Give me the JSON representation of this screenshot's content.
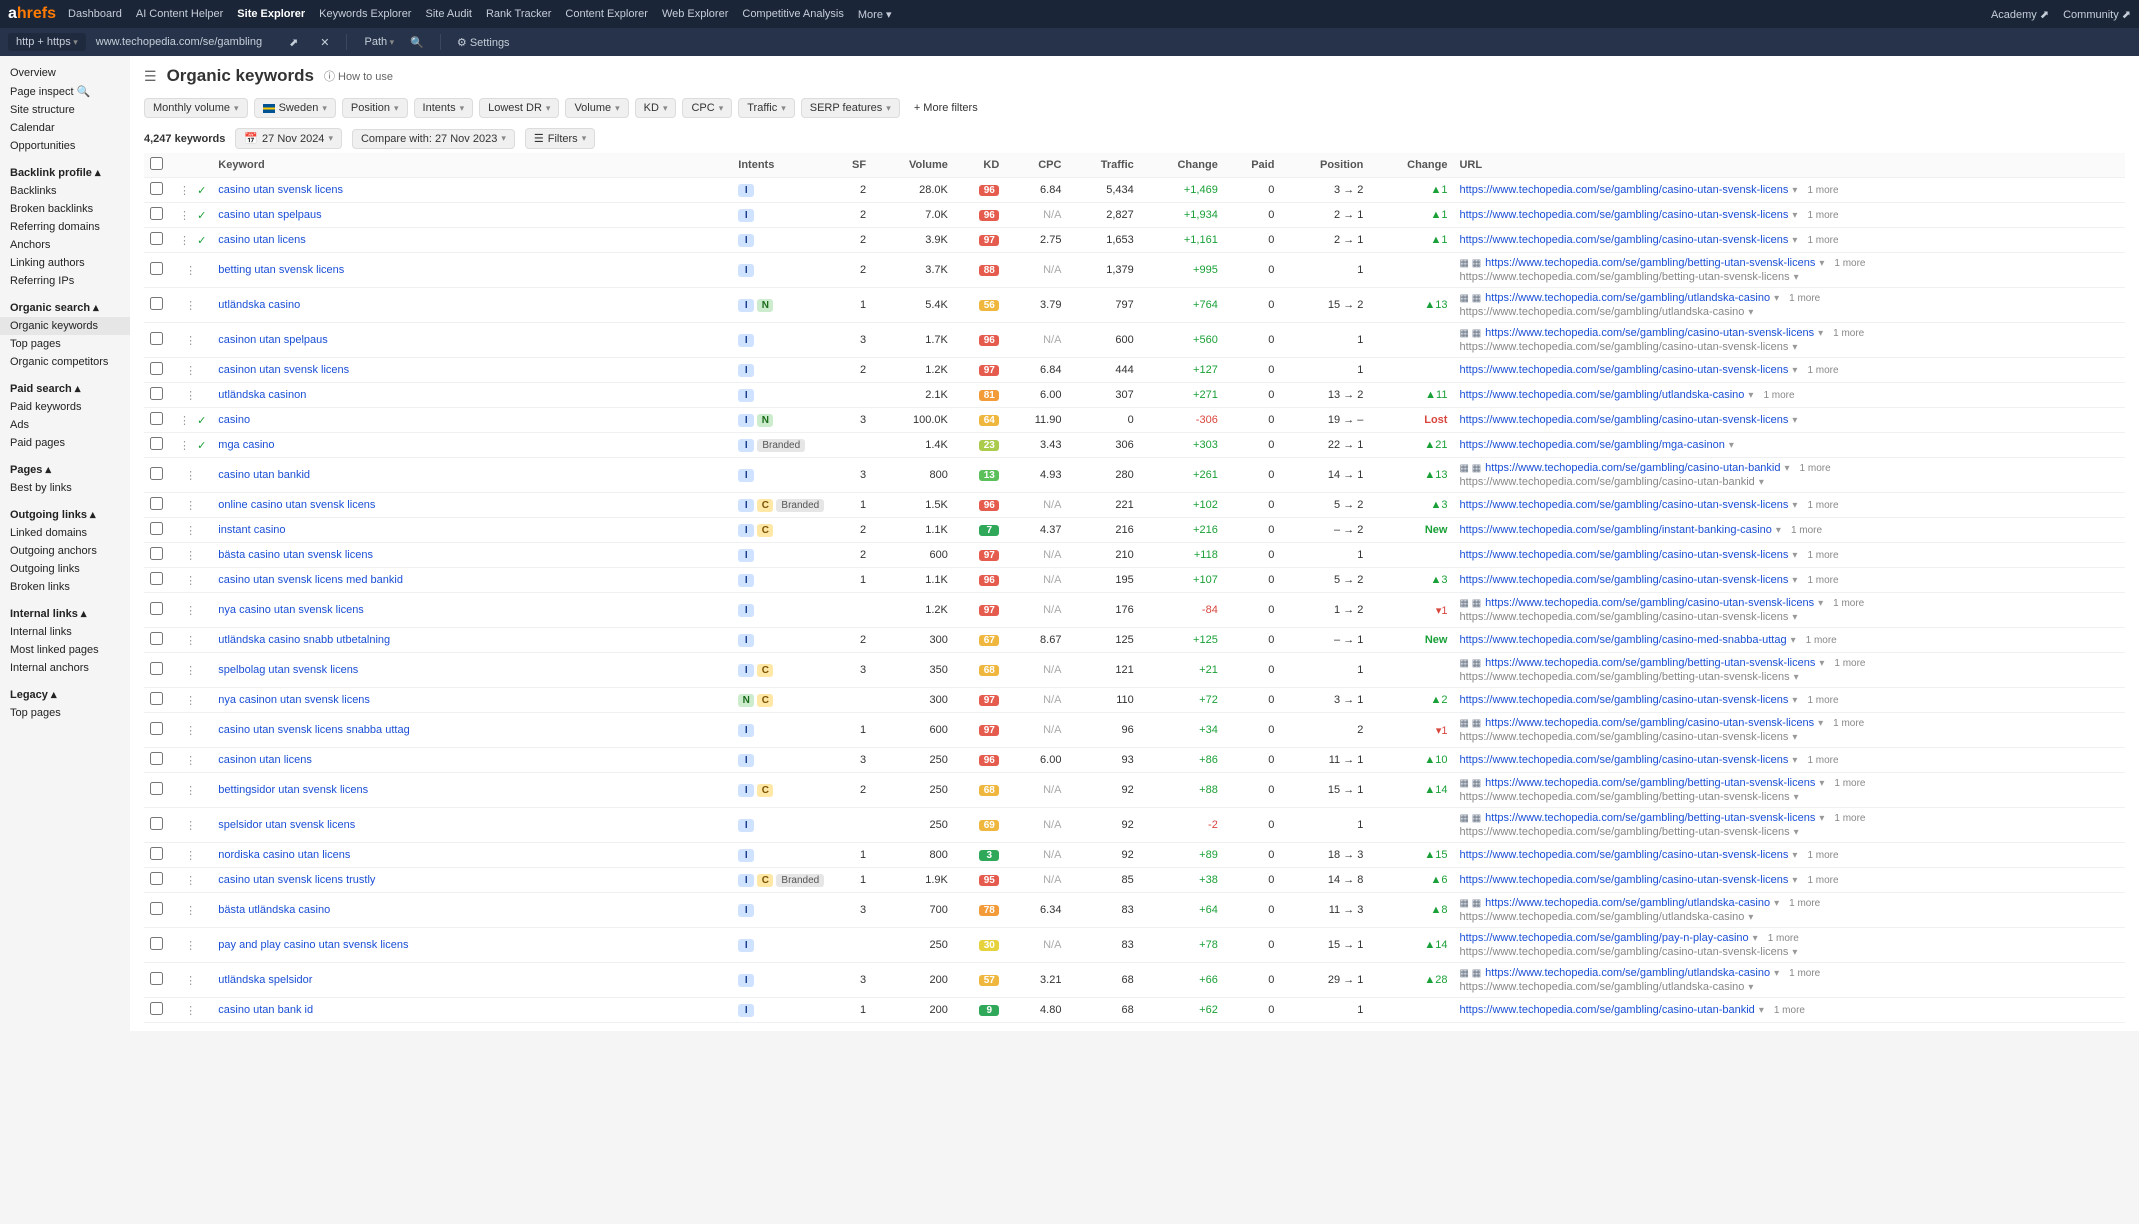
{
  "logo": {
    "a": "a",
    "hrefs": "hrefs"
  },
  "topnav": [
    "Dashboard",
    "AI Content Helper",
    "Site Explorer",
    "Keywords Explorer",
    "Site Audit",
    "Rank Tracker",
    "Content Explorer",
    "Web Explorer",
    "Competitive Analysis",
    "More"
  ],
  "topnav_active": 2,
  "topnav_right": [
    "Academy",
    "Community"
  ],
  "urlbar": {
    "proto": "http + https",
    "target": "www.techopedia.com/se/gambling",
    "mode": "Path",
    "settings": "Settings"
  },
  "sidebar": {
    "items": [
      {
        "t": "Overview"
      },
      {
        "t": "Page inspect",
        "icon": "search"
      },
      {
        "t": "Site structure"
      },
      {
        "t": "Calendar"
      },
      {
        "t": "Opportunities"
      }
    ],
    "groups": [
      {
        "title": "Backlink profile",
        "items": [
          "Backlinks",
          "Broken backlinks",
          "Referring domains",
          "Anchors",
          "Linking authors",
          "Referring IPs"
        ]
      },
      {
        "title": "Organic search",
        "items": [
          "Organic keywords",
          "Top pages",
          "Organic competitors"
        ],
        "active": 0
      },
      {
        "title": "Paid search",
        "items": [
          "Paid keywords",
          "Ads",
          "Paid pages"
        ]
      },
      {
        "title": "Pages",
        "items": [
          "Best by links"
        ]
      },
      {
        "title": "Outgoing links",
        "items": [
          "Linked domains",
          "Outgoing anchors",
          "Outgoing links",
          "Broken links"
        ]
      },
      {
        "title": "Internal links",
        "items": [
          "Internal links",
          "Most linked pages",
          "Internal anchors"
        ]
      },
      {
        "title": "Legacy",
        "items": [
          "Top pages"
        ]
      }
    ]
  },
  "page": {
    "title": "Organic keywords",
    "howto": "How to use"
  },
  "filters": {
    "chips": [
      "Monthly volume",
      "Sweden",
      "Position",
      "Intents",
      "Lowest DR",
      "Volume",
      "KD",
      "CPC",
      "Traffic",
      "SERP features"
    ],
    "more": "+ More filters"
  },
  "subrow": {
    "count": "4,247 keywords",
    "date": "27 Nov 2024",
    "compare": "Compare with: 27 Nov 2023",
    "filters": "Filters"
  },
  "columns": [
    "",
    "",
    "Keyword",
    "Intents",
    "SF",
    "Volume",
    "KD",
    "CPC",
    "Traffic",
    "Change",
    "Paid",
    "Position",
    "Change",
    "URL"
  ],
  "kd_colors": {
    "red": "#e55b4d",
    "orange": "#f29b38",
    "amber": "#efb73e",
    "yellow": "#e6d23c",
    "lime": "#aacb4b",
    "green": "#5bbf5b",
    "dgreen": "#2fa85a"
  },
  "rows": [
    {
      "chk": true,
      "kw": "casino utan svensk licens",
      "intents": [
        "I"
      ],
      "sf": "2",
      "vol": "28.0K",
      "kd": "96",
      "kdc": "red",
      "cpc": "6.84",
      "traffic": "5,434",
      "tchange": "+1,469",
      "tpos": true,
      "paid": "0",
      "pos": "3 → 2",
      "pchange": "▲1",
      "url": "https://www.techopedia.com/se/gambling/casino-utan-svensk-licens",
      "more": "1 more"
    },
    {
      "chk": true,
      "kw": "casino utan spelpaus",
      "intents": [
        "I"
      ],
      "sf": "2",
      "vol": "7.0K",
      "kd": "96",
      "kdc": "red",
      "cpc": "N/A",
      "traffic": "2,827",
      "tchange": "+1,934",
      "tpos": true,
      "paid": "0",
      "pos": "2 → 1",
      "pchange": "▲1",
      "url": "https://www.techopedia.com/se/gambling/casino-utan-svensk-licens",
      "more": "1 more"
    },
    {
      "chk": true,
      "kw": "casino utan licens",
      "intents": [
        "I"
      ],
      "sf": "2",
      "vol": "3.9K",
      "kd": "97",
      "kdc": "red",
      "cpc": "2.75",
      "traffic": "1,653",
      "tchange": "+1,161",
      "tpos": true,
      "paid": "0",
      "pos": "2 → 1",
      "pchange": "▲1",
      "url": "https://www.techopedia.com/se/gambling/casino-utan-svensk-licens",
      "more": "1 more"
    },
    {
      "kw": "betting utan svensk licens",
      "intents": [
        "I"
      ],
      "sf": "2",
      "vol": "3.7K",
      "kd": "88",
      "kdc": "red",
      "cpc": "N/A",
      "traffic": "1,379",
      "tchange": "+995",
      "tpos": true,
      "paid": "0",
      "pos": "1",
      "pchange": "",
      "icons": true,
      "url": "https://www.techopedia.com/se/gambling/betting-utan-svensk-licens",
      "more": "1 more",
      "url2": "https://www.techopedia.com/se/gambling/betting-utan-svensk-licens"
    },
    {
      "kw": "utländska casino",
      "intents": [
        "I",
        "N"
      ],
      "sf": "1",
      "vol": "5.4K",
      "kd": "56",
      "kdc": "amber",
      "cpc": "3.79",
      "traffic": "797",
      "tchange": "+764",
      "tpos": true,
      "paid": "0",
      "pos": "15 → 2",
      "pchange": "▲13",
      "icons": true,
      "url": "https://www.techopedia.com/se/gambling/utlandska-casino",
      "more": "1 more",
      "url2": "https://www.techopedia.com/se/gambling/utlandska-casino"
    },
    {
      "kw": "casinon utan spelpaus",
      "intents": [
        "I"
      ],
      "sf": "3",
      "vol": "1.7K",
      "kd": "96",
      "kdc": "red",
      "cpc": "N/A",
      "traffic": "600",
      "tchange": "+560",
      "tpos": true,
      "paid": "0",
      "pos": "1",
      "pchange": "",
      "icons": true,
      "url": "https://www.techopedia.com/se/gambling/casino-utan-svensk-licens",
      "more": "1 more",
      "url2": "https://www.techopedia.com/se/gambling/casino-utan-svensk-licens"
    },
    {
      "kw": "casinon utan svensk licens",
      "intents": [
        "I"
      ],
      "sf": "2",
      "vol": "1.2K",
      "kd": "97",
      "kdc": "red",
      "cpc": "6.84",
      "traffic": "444",
      "tchange": "+127",
      "tpos": true,
      "paid": "0",
      "pos": "1",
      "pchange": "",
      "url": "https://www.techopedia.com/se/gambling/casino-utan-svensk-licens",
      "more": "1 more"
    },
    {
      "kw": "utländska casinon",
      "intents": [
        "I"
      ],
      "sf": "",
      "vol": "2.1K",
      "kd": "81",
      "kdc": "orange",
      "cpc": "6.00",
      "traffic": "307",
      "tchange": "+271",
      "tpos": true,
      "paid": "0",
      "pos": "13 → 2",
      "pchange": "▲11",
      "url": "https://www.techopedia.com/se/gambling/utlandska-casino",
      "more": "1 more"
    },
    {
      "chk": true,
      "kw": "casino",
      "intents": [
        "I",
        "N"
      ],
      "sf": "3",
      "vol": "100.0K",
      "kd": "64",
      "kdc": "amber",
      "cpc": "11.90",
      "traffic": "0",
      "tchange": "-306",
      "tpos": false,
      "paid": "0",
      "pos": "19 → –",
      "pchange": "Lost",
      "url": "https://www.techopedia.com/se/gambling/casino-utan-svensk-licens"
    },
    {
      "chk": true,
      "kw": "mga casino",
      "intents": [
        "I",
        "Branded"
      ],
      "sf": "",
      "vol": "1.4K",
      "kd": "23",
      "kdc": "lime",
      "cpc": "3.43",
      "traffic": "306",
      "tchange": "+303",
      "tpos": true,
      "paid": "0",
      "pos": "22 → 1",
      "pchange": "▲21",
      "url": "https://www.techopedia.com/se/gambling/mga-casinon"
    },
    {
      "kw": "casino utan bankid",
      "intents": [
        "I"
      ],
      "sf": "3",
      "vol": "800",
      "kd": "13",
      "kdc": "green",
      "cpc": "4.93",
      "traffic": "280",
      "tchange": "+261",
      "tpos": true,
      "paid": "0",
      "pos": "14 → 1",
      "pchange": "▲13",
      "icons": true,
      "url": "https://www.techopedia.com/se/gambling/casino-utan-bankid",
      "more": "1 more",
      "url2": "https://www.techopedia.com/se/gambling/casino-utan-bankid"
    },
    {
      "kw": "online casino utan svensk licens",
      "intents": [
        "I",
        "C",
        "Branded"
      ],
      "sf": "1",
      "vol": "1.5K",
      "kd": "96",
      "kdc": "red",
      "cpc": "N/A",
      "traffic": "221",
      "tchange": "+102",
      "tpos": true,
      "paid": "0",
      "pos": "5 → 2",
      "pchange": "▲3",
      "url": "https://www.techopedia.com/se/gambling/casino-utan-svensk-licens",
      "more": "1 more"
    },
    {
      "kw": "instant casino",
      "intents": [
        "I",
        "C"
      ],
      "sf": "2",
      "vol": "1.1K",
      "kd": "7",
      "kdc": "dgreen",
      "cpc": "4.37",
      "traffic": "216",
      "tchange": "+216",
      "tpos": true,
      "paid": "0",
      "pos": "– → 2",
      "pchange": "New",
      "url": "https://www.techopedia.com/se/gambling/instant-banking-casino",
      "more": "1 more"
    },
    {
      "kw": "bästa casino utan svensk licens",
      "intents": [
        "I"
      ],
      "sf": "2",
      "vol": "600",
      "kd": "97",
      "kdc": "red",
      "cpc": "N/A",
      "traffic": "210",
      "tchange": "+118",
      "tpos": true,
      "paid": "0",
      "pos": "1",
      "pchange": "",
      "url": "https://www.techopedia.com/se/gambling/casino-utan-svensk-licens",
      "more": "1 more"
    },
    {
      "kw": "casino utan svensk licens med bankid",
      "intents": [
        "I"
      ],
      "sf": "1",
      "vol": "1.1K",
      "kd": "96",
      "kdc": "red",
      "cpc": "N/A",
      "traffic": "195",
      "tchange": "+107",
      "tpos": true,
      "paid": "0",
      "pos": "5 → 2",
      "pchange": "▲3",
      "url": "https://www.techopedia.com/se/gambling/casino-utan-svensk-licens",
      "more": "1 more"
    },
    {
      "kw": "nya casino utan svensk licens",
      "intents": [
        "I"
      ],
      "sf": "",
      "vol": "1.2K",
      "kd": "97",
      "kdc": "red",
      "cpc": "N/A",
      "traffic": "176",
      "tchange": "-84",
      "tpos": false,
      "paid": "0",
      "pos": "1 → 2",
      "pchange": "▾1",
      "icons": true,
      "url": "https://www.techopedia.com/se/gambling/casino-utan-svensk-licens",
      "more": "1 more",
      "url2": "https://www.techopedia.com/se/gambling/casino-utan-svensk-licens"
    },
    {
      "kw": "utländska casino snabb utbetalning",
      "intents": [
        "I"
      ],
      "sf": "2",
      "vol": "300",
      "kd": "67",
      "kdc": "amber",
      "cpc": "8.67",
      "traffic": "125",
      "tchange": "+125",
      "tpos": true,
      "paid": "0",
      "pos": "– → 1",
      "pchange": "New",
      "url": "https://www.techopedia.com/se/gambling/casino-med-snabba-uttag",
      "more": "1 more"
    },
    {
      "kw": "spelbolag utan svensk licens",
      "intents": [
        "I",
        "C"
      ],
      "sf": "3",
      "vol": "350",
      "kd": "68",
      "kdc": "amber",
      "cpc": "N/A",
      "traffic": "121",
      "tchange": "+21",
      "tpos": true,
      "paid": "0",
      "pos": "1",
      "pchange": "",
      "icons": true,
      "url": "https://www.techopedia.com/se/gambling/betting-utan-svensk-licens",
      "more": "1 more",
      "url2": "https://www.techopedia.com/se/gambling/betting-utan-svensk-licens"
    },
    {
      "kw": "nya casinon utan svensk licens",
      "intents": [
        "N",
        "C"
      ],
      "sf": "",
      "vol": "300",
      "kd": "97",
      "kdc": "red",
      "cpc": "N/A",
      "traffic": "110",
      "tchange": "+72",
      "tpos": true,
      "paid": "0",
      "pos": "3 → 1",
      "pchange": "▲2",
      "url": "https://www.techopedia.com/se/gambling/casino-utan-svensk-licens",
      "more": "1 more"
    },
    {
      "kw": "casino utan svensk licens snabba uttag",
      "intents": [
        "I"
      ],
      "sf": "1",
      "vol": "600",
      "kd": "97",
      "kdc": "red",
      "cpc": "N/A",
      "traffic": "96",
      "tchange": "+34",
      "tpos": true,
      "paid": "0",
      "pos": "2",
      "pchange": "▾1",
      "icons": true,
      "url": "https://www.techopedia.com/se/gambling/casino-utan-svensk-licens",
      "more": "1 more",
      "url2": "https://www.techopedia.com/se/gambling/casino-utan-svensk-licens"
    },
    {
      "kw": "casinon utan licens",
      "intents": [
        "I"
      ],
      "sf": "3",
      "vol": "250",
      "kd": "96",
      "kdc": "red",
      "cpc": "6.00",
      "traffic": "93",
      "tchange": "+86",
      "tpos": true,
      "paid": "0",
      "pos": "11 → 1",
      "pchange": "▲10",
      "url": "https://www.techopedia.com/se/gambling/casino-utan-svensk-licens",
      "more": "1 more"
    },
    {
      "kw": "bettingsidor utan svensk licens",
      "intents": [
        "I",
        "C"
      ],
      "sf": "2",
      "vol": "250",
      "kd": "68",
      "kdc": "amber",
      "cpc": "N/A",
      "traffic": "92",
      "tchange": "+88",
      "tpos": true,
      "paid": "0",
      "pos": "15 → 1",
      "pchange": "▲14",
      "icons": true,
      "url": "https://www.techopedia.com/se/gambling/betting-utan-svensk-licens",
      "more": "1 more",
      "url2": "https://www.techopedia.com/se/gambling/betting-utan-svensk-licens"
    },
    {
      "kw": "spelsidor utan svensk licens",
      "intents": [
        "I"
      ],
      "sf": "",
      "vol": "250",
      "kd": "69",
      "kdc": "amber",
      "cpc": "N/A",
      "traffic": "92",
      "tchange": "-2",
      "tpos": false,
      "paid": "0",
      "pos": "1",
      "pchange": "",
      "icons": true,
      "url": "https://www.techopedia.com/se/gambling/betting-utan-svensk-licens",
      "more": "1 more",
      "url2": "https://www.techopedia.com/se/gambling/betting-utan-svensk-licens"
    },
    {
      "kw": "nordiska casino utan licens",
      "intents": [
        "I"
      ],
      "sf": "1",
      "vol": "800",
      "kd": "3",
      "kdc": "dgreen",
      "cpc": "N/A",
      "traffic": "92",
      "tchange": "+89",
      "tpos": true,
      "paid": "0",
      "pos": "18 → 3",
      "pchange": "▲15",
      "url": "https://www.techopedia.com/se/gambling/casino-utan-svensk-licens",
      "more": "1 more"
    },
    {
      "kw": "casino utan svensk licens trustly",
      "intents": [
        "I",
        "C",
        "Branded"
      ],
      "sf": "1",
      "vol": "1.9K",
      "kd": "95",
      "kdc": "red",
      "cpc": "N/A",
      "traffic": "85",
      "tchange": "+38",
      "tpos": true,
      "paid": "0",
      "pos": "14 → 8",
      "pchange": "▲6",
      "url": "https://www.techopedia.com/se/gambling/casino-utan-svensk-licens",
      "more": "1 more"
    },
    {
      "kw": "bästa utländska casino",
      "intents": [
        "I"
      ],
      "sf": "3",
      "vol": "700",
      "kd": "78",
      "kdc": "orange",
      "cpc": "6.34",
      "traffic": "83",
      "tchange": "+64",
      "tpos": true,
      "paid": "0",
      "pos": "11 → 3",
      "pchange": "▲8",
      "icons": true,
      "url": "https://www.techopedia.com/se/gambling/utlandska-casino",
      "more": "1 more",
      "url2": "https://www.techopedia.com/se/gambling/utlandska-casino"
    },
    {
      "kw": "pay and play casino utan svensk licens",
      "intents": [
        "I"
      ],
      "sf": "",
      "vol": "250",
      "kd": "30",
      "kdc": "yellow",
      "cpc": "N/A",
      "traffic": "83",
      "tchange": "+78",
      "tpos": true,
      "paid": "0",
      "pos": "15 → 1",
      "pchange": "▲14",
      "url": "https://www.techopedia.com/se/gambling/pay-n-play-casino",
      "more": "1 more",
      "url2": "https://www.techopedia.com/se/gambling/casino-utan-svensk-licens"
    },
    {
      "kw": "utländska spelsidor",
      "intents": [
        "I"
      ],
      "sf": "3",
      "vol": "200",
      "kd": "57",
      "kdc": "amber",
      "cpc": "3.21",
      "traffic": "68",
      "tchange": "+66",
      "tpos": true,
      "paid": "0",
      "pos": "29 → 1",
      "pchange": "▲28",
      "icons": true,
      "url": "https://www.techopedia.com/se/gambling/utlandska-casino",
      "more": "1 more",
      "url2": "https://www.techopedia.com/se/gambling/utlandska-casino"
    },
    {
      "kw": "casino utan bank id",
      "intents": [
        "I"
      ],
      "sf": "1",
      "vol": "200",
      "kd": "9",
      "kdc": "dgreen",
      "cpc": "4.80",
      "traffic": "68",
      "tchange": "+62",
      "tpos": true,
      "paid": "0",
      "pos": "1",
      "pchange": "",
      "url": "https://www.techopedia.com/se/gambling/casino-utan-bankid",
      "more": "1 more"
    }
  ]
}
